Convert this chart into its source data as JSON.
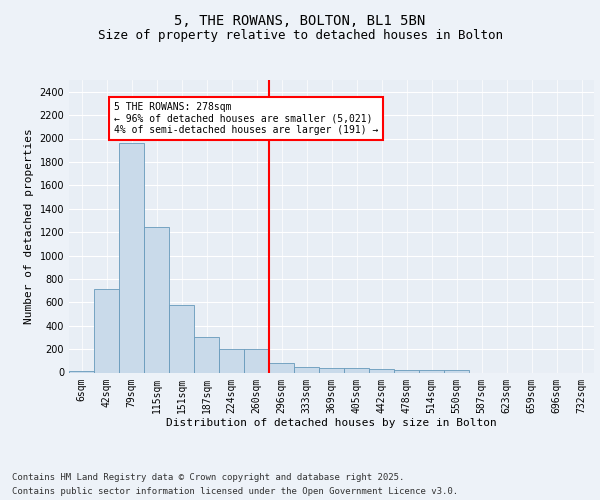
{
  "title": "5, THE ROWANS, BOLTON, BL1 5BN",
  "subtitle": "Size of property relative to detached houses in Bolton",
  "xlabel": "Distribution of detached houses by size in Bolton",
  "ylabel": "Number of detached properties",
  "bar_color": "#c9daea",
  "bar_edge_color": "#6699bb",
  "categories": [
    "6sqm",
    "42sqm",
    "79sqm",
    "115sqm",
    "151sqm",
    "187sqm",
    "224sqm",
    "260sqm",
    "296sqm",
    "333sqm",
    "369sqm",
    "405sqm",
    "442sqm",
    "478sqm",
    "514sqm",
    "550sqm",
    "587sqm",
    "623sqm",
    "659sqm",
    "696sqm",
    "732sqm"
  ],
  "values": [
    15,
    710,
    1960,
    1240,
    575,
    305,
    205,
    200,
    85,
    50,
    40,
    38,
    33,
    22,
    20,
    20,
    0,
    0,
    0,
    0,
    0
  ],
  "ylim": [
    0,
    2500
  ],
  "yticks": [
    0,
    200,
    400,
    600,
    800,
    1000,
    1200,
    1400,
    1600,
    1800,
    2000,
    2200,
    2400
  ],
  "vline_x": 7.5,
  "vline_color": "red",
  "annotation_title": "5 THE ROWANS: 278sqm",
  "annotation_line1": "← 96% of detached houses are smaller (5,021)",
  "annotation_line2": "4% of semi-detached houses are larger (191) →",
  "annotation_box_color": "#ffffff",
  "annotation_box_edge": "red",
  "footnote1": "Contains HM Land Registry data © Crown copyright and database right 2025.",
  "footnote2": "Contains public sector information licensed under the Open Government Licence v3.0.",
  "bg_color": "#e8eef5",
  "fig_bg_color": "#edf2f8",
  "grid_color": "#ffffff",
  "title_fontsize": 10,
  "subtitle_fontsize": 9,
  "axis_label_fontsize": 8,
  "tick_fontsize": 7,
  "footnote_fontsize": 6.5
}
